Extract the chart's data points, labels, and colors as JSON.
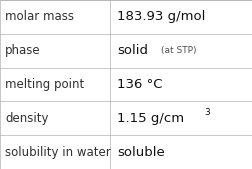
{
  "rows": [
    {
      "label": "molar mass",
      "main": "183.93 g/mol",
      "sup": null,
      "suffix": null
    },
    {
      "label": "phase",
      "main": "solid",
      "sup": null,
      "suffix": "(at STP)"
    },
    {
      "label": "melting point",
      "main": "136 °C",
      "sup": null,
      "suffix": null
    },
    {
      "label": "density",
      "main": "1.15 g/cm",
      "sup": "3",
      "suffix": null
    },
    {
      "label": "solubility in water",
      "main": "soluble",
      "sup": null,
      "suffix": null
    }
  ],
  "col_split": 0.435,
  "bg": "#ffffff",
  "grid_color": "#b0b0b0",
  "label_fs": 8.5,
  "value_fs": 9.5,
  "small_fs": 6.5,
  "label_color": "#303030",
  "value_color": "#111111",
  "suffix_color": "#505050"
}
